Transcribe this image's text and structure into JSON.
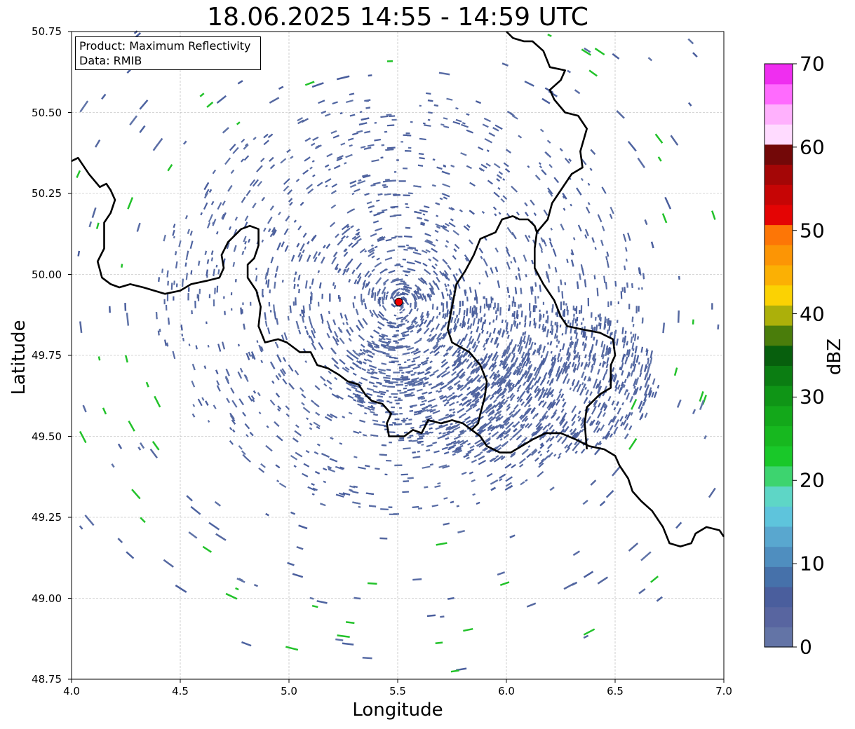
{
  "title": "18.06.2025 14:55 - 14:59 UTC",
  "xlabel": "Longitude",
  "ylabel": "Latitude",
  "info": {
    "product": "Product: Maximum Reflectivity",
    "data": "Data: RMIB"
  },
  "colorbar": {
    "label": "dBZ",
    "ticks": [
      "0",
      "10",
      "20",
      "30",
      "40",
      "50",
      "60",
      "70"
    ],
    "min": 0,
    "max": 70,
    "colors": [
      "#6374a6",
      "#5865a0",
      "#4a5e9d",
      "#4671aa",
      "#4f8ebf",
      "#59a7cf",
      "#5ec4dc",
      "#5ed6c6",
      "#3dd46f",
      "#19c829",
      "#17b81f",
      "#13a81a",
      "#0f9516",
      "#0b7d12",
      "#075f0d",
      "#4a7d0b",
      "#acb00a",
      "#fbd203",
      "#fbb004",
      "#fc9505",
      "#fd7606",
      "#e40404",
      "#c60505",
      "#a40606",
      "#730808",
      "#ffdbff",
      "#ffb1fd",
      "#ff6bfe",
      "#ef2ef0"
    ]
  },
  "chart_data": {
    "type": "map",
    "title": "18.06.2025 14:55 - 14:59 UTC",
    "xlabel": "Longitude",
    "ylabel": "Latitude",
    "xlim": [
      4.0,
      7.0
    ],
    "ylim": [
      48.75,
      50.75
    ],
    "xticks": [
      "4.0",
      "4.5",
      "5.0",
      "5.5",
      "6.0",
      "6.5",
      "7.0"
    ],
    "yticks": [
      "48.75",
      "49.00",
      "49.25",
      "49.50",
      "49.75",
      "50.00",
      "50.25",
      "50.50",
      "50.75"
    ],
    "grid": true,
    "radar_site": {
      "lon": 5.505,
      "lat": 49.915
    },
    "border_line": [
      [
        4.0,
        50.35
      ],
      [
        4.03,
        50.36
      ],
      [
        4.08,
        50.31
      ],
      [
        4.13,
        50.27
      ],
      [
        4.16,
        50.28
      ],
      [
        4.18,
        50.26
      ],
      [
        4.2,
        50.23
      ],
      [
        4.18,
        50.19
      ],
      [
        4.15,
        50.16
      ],
      [
        4.15,
        50.08
      ],
      [
        4.12,
        50.04
      ],
      [
        4.14,
        49.99
      ],
      [
        4.18,
        49.97
      ],
      [
        4.22,
        49.96
      ],
      [
        4.27,
        49.97
      ],
      [
        4.33,
        49.96
      ],
      [
        4.43,
        49.94
      ],
      [
        4.5,
        49.95
      ],
      [
        4.55,
        49.97
      ],
      [
        4.62,
        49.98
      ],
      [
        4.68,
        49.99
      ],
      [
        4.7,
        50.02
      ],
      [
        4.69,
        50.06
      ],
      [
        4.72,
        50.1
      ],
      [
        4.78,
        50.14
      ],
      [
        4.82,
        50.15
      ],
      [
        4.86,
        50.14
      ],
      [
        4.86,
        50.09
      ],
      [
        4.84,
        50.05
      ],
      [
        4.81,
        50.03
      ],
      [
        4.81,
        49.99
      ],
      [
        4.85,
        49.95
      ],
      [
        4.87,
        49.9
      ],
      [
        4.86,
        49.84
      ],
      [
        4.89,
        49.79
      ],
      [
        4.95,
        49.8
      ],
      [
        4.99,
        49.79
      ],
      [
        5.05,
        49.76
      ],
      [
        5.1,
        49.76
      ],
      [
        5.13,
        49.72
      ],
      [
        5.18,
        49.71
      ],
      [
        5.23,
        49.69
      ],
      [
        5.27,
        49.67
      ],
      [
        5.32,
        49.66
      ],
      [
        5.35,
        49.63
      ],
      [
        5.38,
        49.61
      ],
      [
        5.43,
        49.6
      ],
      [
        5.47,
        49.57
      ],
      [
        5.45,
        49.54
      ],
      [
        5.46,
        49.5
      ],
      [
        5.5,
        49.5
      ],
      [
        5.53,
        49.5
      ],
      [
        5.57,
        49.52
      ],
      [
        5.61,
        49.51
      ],
      [
        5.64,
        49.55
      ],
      [
        5.7,
        49.54
      ],
      [
        5.75,
        49.55
      ],
      [
        5.8,
        49.54
      ],
      [
        5.84,
        49.52
      ],
      [
        5.88,
        49.5
      ],
      [
        5.91,
        49.47
      ],
      [
        5.97,
        49.45
      ],
      [
        6.02,
        49.45
      ],
      [
        6.07,
        49.47
      ],
      [
        6.12,
        49.49
      ],
      [
        6.18,
        49.51
      ],
      [
        6.25,
        49.51
      ],
      [
        6.32,
        49.49
      ],
      [
        6.38,
        49.47
      ],
      [
        6.45,
        49.46
      ],
      [
        6.5,
        49.44
      ],
      [
        6.52,
        49.41
      ],
      [
        6.56,
        49.37
      ],
      [
        6.58,
        49.33
      ],
      [
        6.62,
        49.3
      ],
      [
        6.67,
        49.27
      ],
      [
        6.72,
        49.22
      ],
      [
        6.75,
        49.17
      ],
      [
        6.8,
        49.16
      ],
      [
        6.85,
        49.17
      ],
      [
        6.87,
        49.2
      ],
      [
        6.92,
        49.22
      ],
      [
        6.98,
        49.21
      ],
      [
        7.0,
        49.19
      ]
    ],
    "border_line2": [
      [
        6.0,
        50.75
      ],
      [
        6.03,
        50.73
      ],
      [
        6.08,
        50.72
      ],
      [
        6.12,
        50.72
      ],
      [
        6.17,
        50.69
      ],
      [
        6.2,
        50.64
      ],
      [
        6.27,
        50.63
      ],
      [
        6.25,
        50.6
      ],
      [
        6.2,
        50.57
      ],
      [
        6.22,
        50.54
      ],
      [
        6.27,
        50.5
      ],
      [
        6.33,
        50.49
      ],
      [
        6.37,
        50.45
      ],
      [
        6.34,
        50.38
      ],
      [
        6.35,
        50.33
      ],
      [
        6.3,
        50.31
      ],
      [
        6.25,
        50.26
      ],
      [
        6.21,
        50.22
      ],
      [
        6.19,
        50.17
      ],
      [
        6.14,
        50.13
      ],
      [
        6.13,
        50.08
      ],
      [
        6.13,
        50.02
      ],
      [
        6.17,
        49.97
      ],
      [
        6.22,
        49.92
      ],
      [
        6.25,
        49.87
      ],
      [
        6.28,
        49.84
      ],
      [
        6.35,
        49.83
      ],
      [
        6.43,
        49.82
      ],
      [
        6.49,
        49.8
      ],
      [
        6.5,
        49.75
      ],
      [
        6.48,
        49.72
      ],
      [
        6.48,
        49.65
      ],
      [
        6.43,
        49.63
      ],
      [
        6.4,
        49.61
      ],
      [
        6.37,
        49.59
      ],
      [
        6.36,
        49.54
      ],
      [
        6.37,
        49.46
      ]
    ],
    "border_line3": [
      [
        6.03,
        50.18
      ],
      [
        5.98,
        50.17
      ],
      [
        5.95,
        50.13
      ],
      [
        5.88,
        50.11
      ],
      [
        5.85,
        50.06
      ],
      [
        5.81,
        50.01
      ],
      [
        5.77,
        49.97
      ],
      [
        5.75,
        49.9
      ],
      [
        5.73,
        49.83
      ],
      [
        5.75,
        49.79
      ],
      [
        5.83,
        49.76
      ],
      [
        5.88,
        49.72
      ],
      [
        5.91,
        49.67
      ],
      [
        5.9,
        49.62
      ],
      [
        5.88,
        49.57
      ],
      [
        5.87,
        49.54
      ],
      [
        5.84,
        49.52
      ]
    ],
    "border_line4": [
      [
        6.03,
        50.18
      ],
      [
        6.06,
        50.17
      ],
      [
        6.1,
        50.17
      ],
      [
        6.13,
        50.15
      ],
      [
        6.14,
        50.13
      ]
    ]
  }
}
